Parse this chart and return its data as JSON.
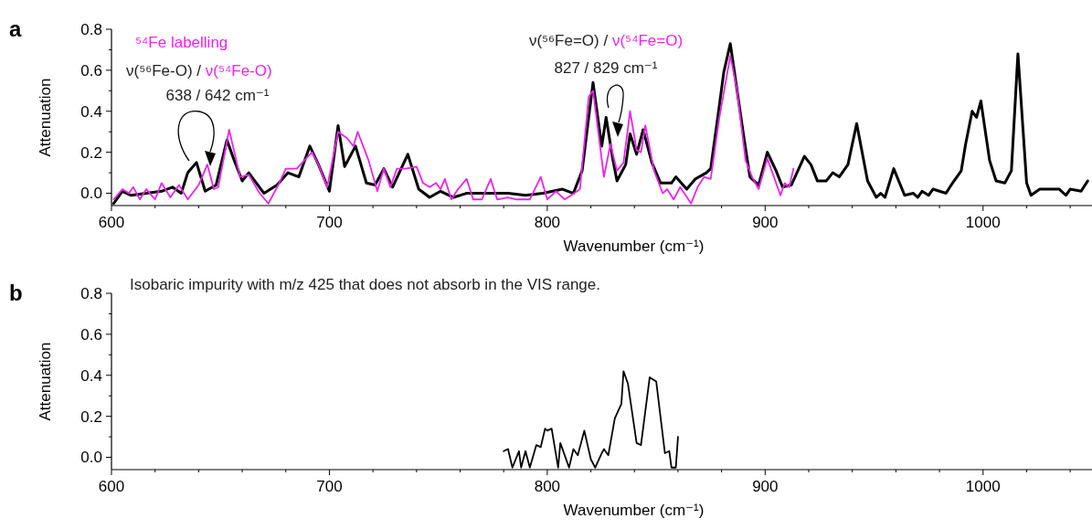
{
  "chart_data": [
    {
      "type": "line",
      "title": "a",
      "xlabel": "Wavenumber (cm⁻¹)",
      "ylabel": "Attenuation",
      "xlim": [
        600,
        1050
      ],
      "ylim": [
        -0.06,
        0.8
      ],
      "xticks": [
        600,
        {
          "value": 620,
          "label": null
        },
        {
          "value": 640,
          "label": null
        },
        {
          "value": 660,
          "label": null
        },
        {
          "value": 680,
          "label": null
        },
        700,
        {
          "value": 720,
          "label": null
        },
        {
          "value": 740,
          "label": null
        },
        {
          "value": 760,
          "label": null
        },
        {
          "value": 780,
          "label": null
        },
        800,
        {
          "value": 820,
          "label": null
        },
        {
          "value": 840,
          "label": null
        },
        {
          "value": 860,
          "label": null
        },
        {
          "value": 880,
          "label": null
        },
        900,
        {
          "value": 920,
          "label": null
        },
        {
          "value": 940,
          "label": null
        },
        {
          "value": 960,
          "label": null
        },
        {
          "value": 980,
          "label": null
        },
        1000,
        {
          "value": 1020,
          "label": null
        },
        {
          "value": 1040,
          "label": null
        }
      ],
      "yticks": [
        {
          "value": 0,
          "label": "0.0"
        },
        {
          "value": 0.1,
          "label": null
        },
        {
          "value": 0.2,
          "label": "0.2"
        },
        {
          "value": 0.3,
          "label": null
        },
        {
          "value": 0.4,
          "label": "0.4"
        },
        {
          "value": 0.5,
          "label": null
        },
        {
          "value": 0.6,
          "label": "0.6"
        },
        {
          "value": 0.7,
          "label": null
        },
        {
          "value": 0.8,
          "label": "0.8"
        }
      ],
      "annotations": [
        "⁵⁴Fe labelling",
        "ν(⁵⁶Fe-O) / ν(⁵⁴Fe-O)",
        "638 / 642 cm⁻¹",
        "ν(⁵⁶Fe=O) / ν(⁵⁴Fe=O)",
        "827 / 829 cm⁻¹"
      ],
      "series": [
        {
          "color": "#000000",
          "x": [
            601,
            605,
            609,
            616,
            623,
            628,
            632,
            635,
            639,
            643,
            648,
            653,
            656,
            660,
            663,
            670,
            676,
            681,
            686,
            691,
            695,
            700,
            704,
            707,
            712,
            717,
            721,
            725,
            729,
            736,
            741,
            746,
            751,
            757,
            763,
            773,
            782,
            790,
            798,
            807,
            812,
            816,
            821,
            825,
            827,
            830,
            832,
            836,
            838,
            841,
            844,
            848,
            852,
            857,
            859,
            864,
            868,
            873,
            875,
            879,
            881,
            884,
            887,
            890,
            893,
            897,
            901,
            905,
            908,
            912,
            918,
            921,
            924,
            928,
            931,
            934,
            938,
            942,
            947,
            951,
            953,
            955,
            959,
            964,
            968,
            970,
            972,
            975,
            977,
            980,
            983,
            986,
            990,
            992,
            995,
            997,
            999,
            1003,
            1006,
            1010,
            1013,
            1016,
            1020,
            1022,
            1026,
            1030,
            1035,
            1038,
            1040,
            1045,
            1048
          ],
          "values": [
            -0.05,
            0.01,
            -0.01,
            0.0,
            0.01,
            0.03,
            0.0,
            0.1,
            0.15,
            0.01,
            0.04,
            0.26,
            0.17,
            0.06,
            0.1,
            0.0,
            0.04,
            0.1,
            0.08,
            0.23,
            0.14,
            0.01,
            0.33,
            0.13,
            0.23,
            0.05,
            0.04,
            0.12,
            0.03,
            0.19,
            0.02,
            -0.02,
            0.01,
            -0.02,
            0.0,
            0.0,
            0.0,
            -0.01,
            0.0,
            0.02,
            0.0,
            0.11,
            0.54,
            0.23,
            0.37,
            0.17,
            0.06,
            0.14,
            0.29,
            0.19,
            0.31,
            0.15,
            0.05,
            0.05,
            0.08,
            0.02,
            0.07,
            0.1,
            0.12,
            0.43,
            0.59,
            0.73,
            0.51,
            0.29,
            0.08,
            0.04,
            0.2,
            0.11,
            0.03,
            0.04,
            0.18,
            0.14,
            0.06,
            0.06,
            0.1,
            0.08,
            0.14,
            0.34,
            0.06,
            -0.02,
            0.0,
            -0.02,
            0.12,
            -0.01,
            0.0,
            -0.02,
            0.01,
            -0.01,
            0.02,
            0.01,
            0.0,
            0.05,
            0.11,
            0.24,
            0.4,
            0.37,
            0.45,
            0.16,
            0.06,
            0.05,
            0.11,
            0.68,
            0.05,
            -0.01,
            0.02,
            0.02,
            0.02,
            -0.01,
            0.02,
            0.01,
            0.06
          ]
        },
        {
          "color": "#ee22ee",
          "x": [
            601,
            605,
            608,
            610,
            613,
            616,
            620,
            623,
            627,
            631,
            635,
            640,
            644,
            647,
            649,
            654,
            659,
            663,
            668,
            672,
            677,
            680,
            685,
            692,
            695,
            699,
            704,
            708,
            711,
            713,
            718,
            722,
            725,
            728,
            731,
            735,
            740,
            743,
            746,
            749,
            751,
            753,
            756,
            759,
            763,
            766,
            770,
            774,
            777,
            782,
            786,
            792,
            797,
            800,
            804,
            808,
            811,
            815,
            819,
            821,
            826,
            829,
            832,
            835,
            838,
            841,
            843,
            845,
            849,
            853,
            855,
            858,
            861,
            866,
            869,
            872,
            875,
            879,
            884,
            887,
            891,
            894,
            897,
            901,
            907,
            909,
            911,
            913
          ],
          "values": [
            -0.03,
            0.02,
            0.0,
            0.03,
            -0.03,
            0.02,
            -0.03,
            0.05,
            -0.02,
            0.04,
            -0.03,
            0.04,
            0.14,
            0.02,
            0.03,
            0.31,
            0.08,
            0.09,
            0.0,
            -0.05,
            0.05,
            0.12,
            0.12,
            0.2,
            0.14,
            0.03,
            0.3,
            0.27,
            0.23,
            0.3,
            0.16,
            0.01,
            0.12,
            0.03,
            0.12,
            0.12,
            0.13,
            0.05,
            0.03,
            0.05,
            0.02,
            0.07,
            -0.03,
            0.02,
            0.07,
            -0.03,
            -0.03,
            0.07,
            -0.03,
            -0.02,
            -0.03,
            -0.03,
            0.08,
            -0.03,
            0.01,
            -0.03,
            -0.01,
            0.02,
            0.47,
            0.5,
            0.08,
            0.24,
            0.11,
            0.15,
            0.4,
            0.21,
            0.2,
            0.33,
            0.11,
            0.0,
            0.02,
            -0.03,
            0.03,
            -0.05,
            0.03,
            0.08,
            0.07,
            0.37,
            0.67,
            0.51,
            0.16,
            0.08,
            0.02,
            0.17,
            -0.01,
            0.05,
            0.03,
            0.12
          ]
        }
      ]
    },
    {
      "type": "line",
      "title": "b",
      "xlabel": "Wavenumber (cm⁻¹)",
      "ylabel": "Attenuation",
      "xlim": [
        600,
        1050
      ],
      "ylim": [
        -0.06,
        0.8
      ],
      "xticks": [
        600,
        {
          "value": 620,
          "label": null
        },
        {
          "value": 640,
          "label": null
        },
        {
          "value": 660,
          "label": null
        },
        {
          "value": 680,
          "label": null
        },
        700,
        {
          "value": 720,
          "label": null
        },
        {
          "value": 740,
          "label": null
        },
        {
          "value": 760,
          "label": null
        },
        {
          "value": 780,
          "label": null
        },
        800,
        {
          "value": 820,
          "label": null
        },
        {
          "value": 840,
          "label": null
        },
        {
          "value": 860,
          "label": null
        },
        {
          "value": 880,
          "label": null
        },
        900,
        {
          "value": 920,
          "label": null
        },
        {
          "value": 940,
          "label": null
        },
        {
          "value": 960,
          "label": null
        },
        {
          "value": 980,
          "label": null
        },
        1000,
        {
          "value": 1020,
          "label": null
        },
        {
          "value": 1040,
          "label": null
        }
      ],
      "yticks": [
        {
          "value": 0,
          "label": "0.0"
        },
        {
          "value": 0.1,
          "label": null
        },
        {
          "value": 0.2,
          "label": "0.2"
        },
        {
          "value": 0.3,
          "label": null
        },
        {
          "value": 0.4,
          "label": "0.4"
        },
        {
          "value": 0.5,
          "label": null
        },
        {
          "value": 0.6,
          "label": "0.6"
        },
        {
          "value": 0.7,
          "label": null
        },
        {
          "value": 0.8,
          "label": "0.8"
        }
      ],
      "annotations": [
        "Isobaric impurity with m/z 425 that does not absorb in the VIS range."
      ],
      "series": [
        {
          "color": "#000000",
          "x": [
            780,
            782,
            784,
            787,
            788,
            790,
            792,
            795,
            797,
            799,
            800,
            802,
            805,
            806,
            810,
            812,
            814,
            817,
            820,
            822,
            825,
            826,
            828,
            831,
            834,
            835,
            837,
            841,
            843,
            847,
            850,
            854,
            856,
            857,
            859,
            860
          ],
          "values": [
            0.03,
            0.04,
            -0.05,
            0.03,
            -0.05,
            0.03,
            -0.05,
            0.06,
            0.05,
            0.14,
            0.13,
            0.14,
            -0.05,
            0.07,
            -0.05,
            0.04,
            0.01,
            0.13,
            -0.01,
            -0.05,
            0.02,
            0.04,
            0.01,
            0.19,
            0.26,
            0.42,
            0.36,
            0.07,
            0.06,
            0.39,
            0.37,
            0.02,
            0.03,
            -0.05,
            -0.05,
            0.1
          ]
        }
      ]
    }
  ]
}
